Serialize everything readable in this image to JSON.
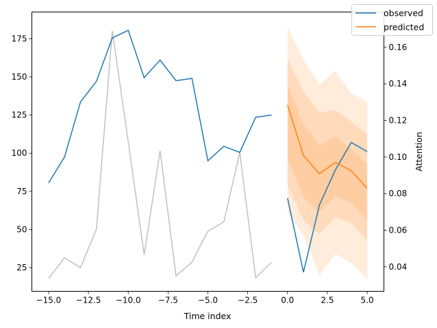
{
  "chart_data": {
    "type": "line",
    "title": "",
    "xlabel": "Time index",
    "ylabel": "",
    "y2label": "Attention",
    "xlim": [
      -16.05,
      6.05
    ],
    "ylim": [
      9.5,
      192.5
    ],
    "y2lim": [
      0.0266,
      0.1793
    ],
    "xticks": [
      -15.0,
      -12.5,
      -10.0,
      -7.5,
      -5.0,
      -2.5,
      0.0,
      2.5,
      5.0
    ],
    "xtick_labels": [
      "−15.0",
      "−12.5",
      "−10.0",
      "−7.5",
      "−5.0",
      "−2.5",
      "0.0",
      "2.5",
      "5.0"
    ],
    "yticks": [
      25,
      50,
      75,
      100,
      125,
      150,
      175
    ],
    "ytick_labels": [
      "25",
      "50",
      "75",
      "100",
      "125",
      "150",
      "175"
    ],
    "y2ticks": [
      0.04,
      0.06,
      0.08,
      0.1,
      0.12,
      0.14,
      0.16
    ],
    "y2tick_labels": [
      "0.04",
      "0.06",
      "0.08",
      "0.10",
      "0.12",
      "0.14",
      "0.16"
    ],
    "grid": false,
    "legend": {
      "placement": "top-right",
      "entries": [
        "observed",
        "predicted"
      ]
    },
    "colors": {
      "observed": "#1f77b4",
      "predicted": "#ff7f0e",
      "attention": "#c0c0c0",
      "band": "#ff7f0e"
    },
    "observed": {
      "name": "observed",
      "x": [
        -15,
        -14,
        -13,
        -12,
        -11,
        -10,
        -9,
        -8,
        -7,
        -6,
        -5,
        -4,
        -3,
        -2,
        -1,
        0,
        1,
        2,
        3,
        4,
        5
      ],
      "y": [
        80.5,
        97.5,
        133.5,
        147,
        175.5,
        180.5,
        149.5,
        161,
        147.5,
        149,
        95,
        104.5,
        100.5,
        123.5,
        125,
        70.5,
        22,
        66,
        89,
        107,
        101
      ]
    },
    "predicted": {
      "name": "predicted",
      "x": [
        0,
        1,
        2,
        3,
        4,
        5
      ],
      "y": [
        131.5,
        98.5,
        86.5,
        94,
        88.5,
        77
      ]
    },
    "prediction_bands": [
      {
        "lower": [
          61,
          46,
          20,
          34,
          28,
          18
        ],
        "upper": [
          182.5,
          161,
          145,
          154,
          139,
          134
        ]
      },
      {
        "lower": [
          79,
          56,
          47,
          58,
          54,
          43
        ],
        "upper": [
          162,
          140,
          126.5,
          128.5,
          120.5,
          112.5
        ]
      },
      {
        "lower": [
          97,
          71,
          61.5,
          72,
          67,
          56
        ],
        "upper": [
          145,
          119,
          105,
          111,
          103,
          93
        ]
      }
    ],
    "attention": {
      "x": [
        -15,
        -14,
        -13,
        -12,
        -11,
        -10,
        -9,
        -8,
        -7,
        -6,
        -5,
        -4,
        -3,
        -2,
        -1
      ],
      "y": [
        0.0335,
        0.045,
        0.0395,
        0.0605,
        0.169,
        0.1085,
        0.0465,
        0.1035,
        0.035,
        0.0425,
        0.0595,
        0.0645,
        0.1025,
        0.034,
        0.0425
      ]
    }
  }
}
